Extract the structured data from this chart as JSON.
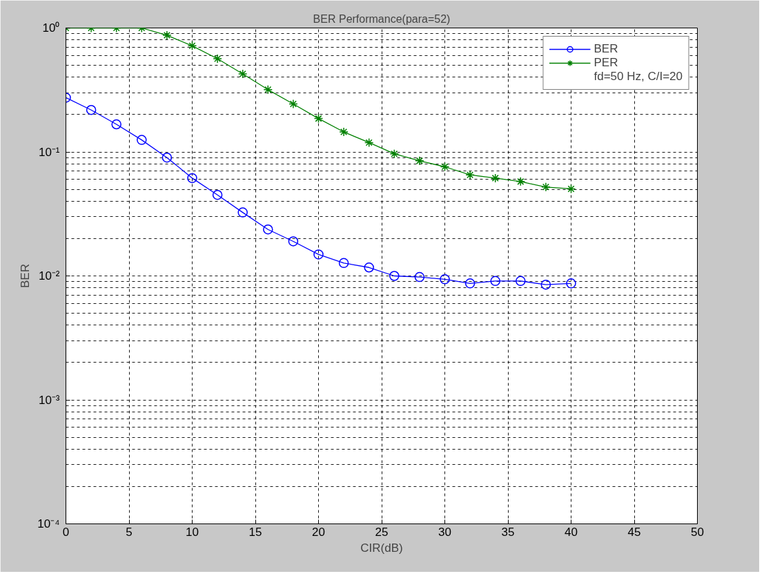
{
  "chart_data": {
    "type": "line",
    "title": "BER Performance(para=52)",
    "xlabel": "CIR(dB)",
    "ylabel": "BER",
    "x": [
      0,
      2,
      4,
      6,
      8,
      10,
      12,
      14,
      16,
      18,
      20,
      22,
      24,
      26,
      28,
      30,
      32,
      34,
      36,
      38,
      40
    ],
    "series": [
      {
        "name": "BER",
        "color": "#0000ff",
        "marker": "circle",
        "values": [
          0.274,
          0.218,
          0.167,
          0.125,
          0.09,
          0.0615,
          0.045,
          0.0325,
          0.0237,
          0.019,
          0.0149,
          0.0127,
          0.0117,
          0.01,
          0.0098,
          0.0094,
          0.0087,
          0.0091,
          0.0091,
          0.0085,
          0.0087
        ]
      },
      {
        "name": "PER",
        "color": "#008000",
        "marker": "cross",
        "values": [
          1,
          1,
          1,
          1,
          0.873,
          0.718,
          0.565,
          0.426,
          0.318,
          0.244,
          0.186,
          0.145,
          0.119,
          0.0966,
          0.0848,
          0.0759,
          0.0653,
          0.0615,
          0.0577,
          0.0521,
          0.0504
        ]
      }
    ],
    "annotations": [
      "fd=50 Hz, C/I=20"
    ],
    "log": "y",
    "grid": true,
    "legend": "top right",
    "line_style": "solid",
    "xlim": [
      0,
      50
    ],
    "xticks": [
      0,
      5,
      10,
      15,
      20,
      25,
      30,
      35,
      40,
      45,
      50
    ],
    "ylim": [
      0.0001,
      1
    ],
    "yticks": [
      {
        "value": 0.0001,
        "label": "10⁻⁴"
      },
      {
        "value": 0.001,
        "label": "10⁻³"
      },
      {
        "value": 0.01,
        "label": "10⁻²"
      },
      {
        "value": 0.1,
        "label": "10⁻¹"
      },
      {
        "value": 1,
        "label": "10⁰"
      }
    ]
  }
}
